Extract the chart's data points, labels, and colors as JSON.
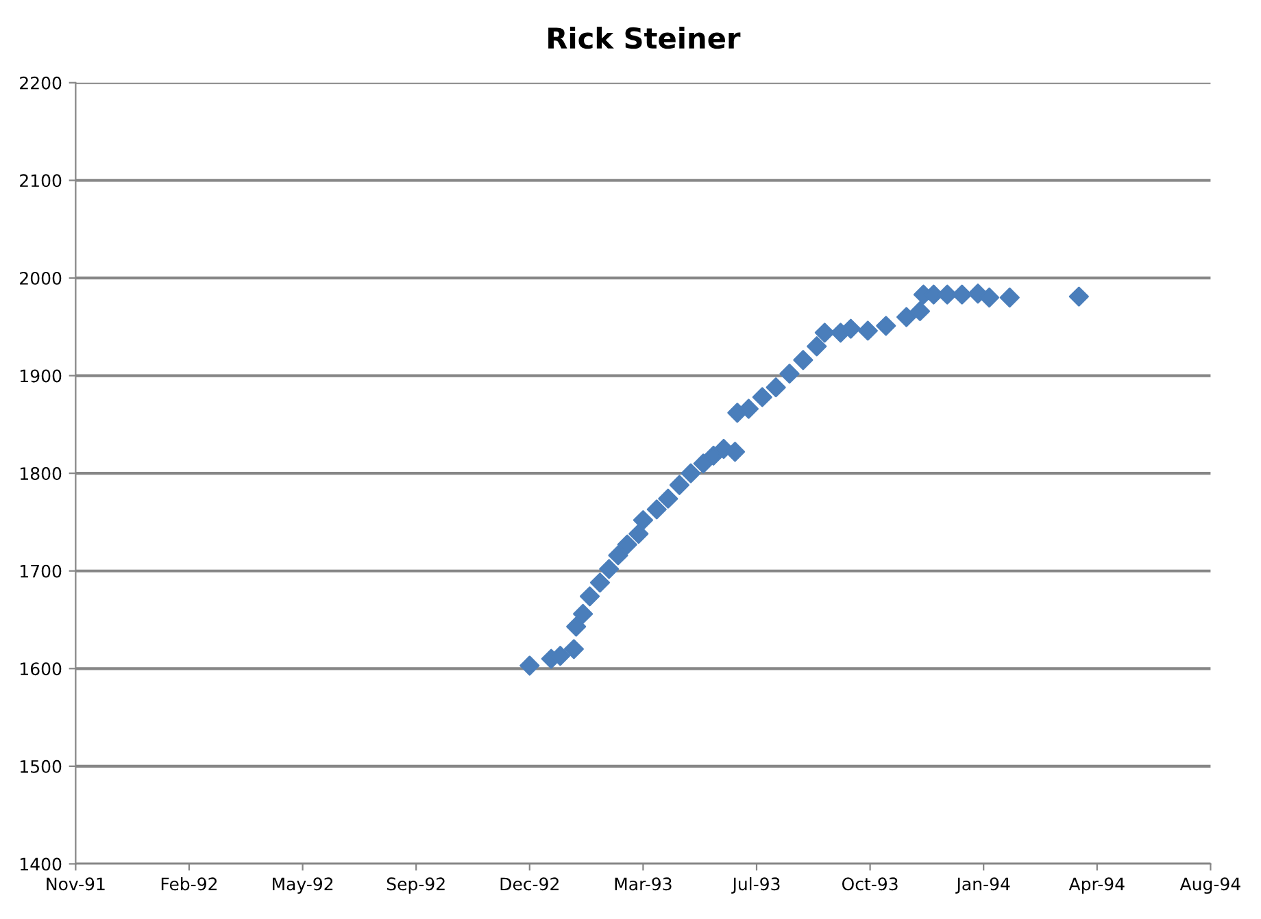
{
  "chart_data": {
    "type": "scatter",
    "title": "Rick Steiner",
    "x": [
      "1992-12-15",
      "1993-01-03",
      "1993-01-11",
      "1993-01-23",
      "1993-01-25",
      "1993-01-31",
      "1993-02-06",
      "1993-02-15",
      "1993-02-23",
      "1993-03-03",
      "1993-03-11",
      "1993-03-21",
      "1993-03-25",
      "1993-04-06",
      "1993-04-16",
      "1993-04-26",
      "1993-05-06",
      "1993-05-17",
      "1993-05-26",
      "1993-06-04",
      "1993-06-14",
      "1993-06-16",
      "1993-06-26",
      "1993-07-08",
      "1993-07-20",
      "1993-08-01",
      "1993-08-13",
      "1993-08-25",
      "1993-09-01",
      "1993-09-15",
      "1993-09-24",
      "1993-10-09",
      "1993-10-25",
      "1993-11-12",
      "1993-11-24",
      "1993-11-27",
      "1993-12-06",
      "1993-12-18",
      "1993-12-31",
      "1994-01-14",
      "1994-01-24",
      "1994-02-11",
      "1994-04-13"
    ],
    "values": [
      1603,
      1610,
      1613,
      1620,
      1643,
      1656,
      1674,
      1688,
      1702,
      1716,
      1727,
      1738,
      1752,
      1763,
      1774,
      1788,
      1800,
      1810,
      1818,
      1825,
      1822,
      1862,
      1866,
      1878,
      1888,
      1902,
      1916,
      1930,
      1944,
      1944,
      1948,
      1946,
      1951,
      1960,
      1966,
      1983,
      1983,
      1983,
      1983,
      1984,
      1980,
      1980,
      1981
    ],
    "color": "#4a7ebb",
    "marker": "diamond",
    "grid": "y",
    "xlim": [
      "1991-11-11",
      "1994-08-07"
    ],
    "xticks": [
      {
        "value": "1991-11-11",
        "label": "Nov-91"
      },
      {
        "value": "1992-02-19",
        "label": "Feb-92"
      },
      {
        "value": "1992-05-29",
        "label": "May-92"
      },
      {
        "value": "1992-09-06",
        "label": "Sep-92"
      },
      {
        "value": "1992-12-15",
        "label": "Dec-92"
      },
      {
        "value": "1993-03-25",
        "label": "Mar-93"
      },
      {
        "value": "1993-07-03",
        "label": "Jul-93"
      },
      {
        "value": "1993-10-11",
        "label": "Oct-93"
      },
      {
        "value": "1994-01-19",
        "label": "Jan-94"
      },
      {
        "value": "1994-04-29",
        "label": "Apr-94"
      },
      {
        "value": "1994-08-07",
        "label": "Aug-94"
      }
    ],
    "ylim": [
      1400,
      2200
    ],
    "yticks": [
      1400,
      1500,
      1600,
      1700,
      1800,
      1900,
      2000,
      2100,
      2200
    ]
  }
}
